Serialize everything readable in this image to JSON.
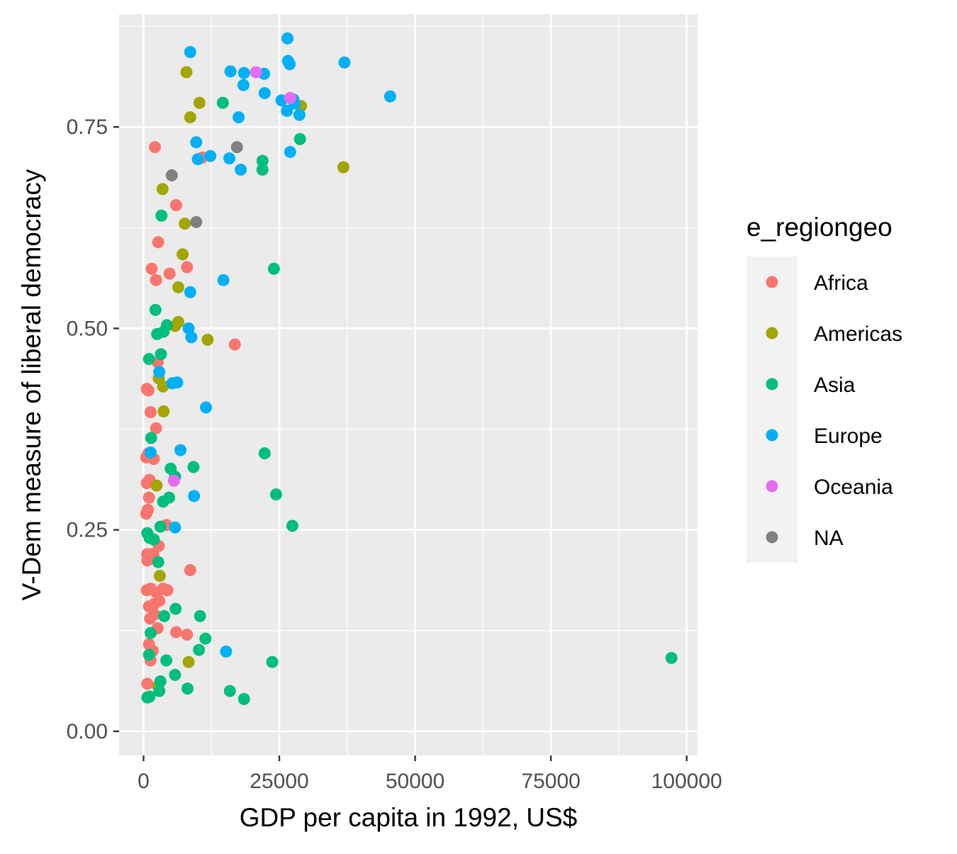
{
  "chart_data": {
    "type": "scatter",
    "xlabel": "GDP per capita in 1992, US$",
    "ylabel": "V-Dem measure of liberal democracy",
    "xlim": [
      -4500,
      102000
    ],
    "ylim": [
      -0.03,
      0.89
    ],
    "x_ticks": [
      0,
      25000,
      50000,
      75000,
      100000
    ],
    "x_tick_labels": [
      "0",
      "25000",
      "50000",
      "75000",
      "100000"
    ],
    "y_ticks": [
      0,
      0.25,
      0.5,
      0.75
    ],
    "y_tick_labels": [
      "0.00",
      "0.25",
      "0.50",
      "0.75"
    ],
    "grid": true,
    "legend": {
      "title": "e_regiongeo",
      "position": "right"
    },
    "series": [
      {
        "name": "Africa",
        "color": "#F8766D",
        "points": [
          [
            2100,
            0.725
          ],
          [
            10800,
            0.712
          ],
          [
            6000,
            0.653
          ],
          [
            2700,
            0.607
          ],
          [
            1500,
            0.574
          ],
          [
            4800,
            0.568
          ],
          [
            2300,
            0.56
          ],
          [
            8000,
            0.576
          ],
          [
            16800,
            0.48
          ],
          [
            2600,
            0.458
          ],
          [
            600,
            0.425
          ],
          [
            900,
            0.423
          ],
          [
            1300,
            0.396
          ],
          [
            2300,
            0.376
          ],
          [
            700,
            0.342
          ],
          [
            900,
            0.345
          ],
          [
            1900,
            0.338
          ],
          [
            500,
            0.34
          ],
          [
            600,
            0.308
          ],
          [
            1100,
            0.312
          ],
          [
            1000,
            0.29
          ],
          [
            800,
            0.275
          ],
          [
            500,
            0.27
          ],
          [
            4200,
            0.256
          ],
          [
            2800,
            0.23
          ],
          [
            700,
            0.22
          ],
          [
            1800,
            0.22
          ],
          [
            700,
            0.212
          ],
          [
            8600,
            0.2
          ],
          [
            600,
            0.175
          ],
          [
            1300,
            0.177
          ],
          [
            2400,
            0.172
          ],
          [
            3600,
            0.177
          ],
          [
            4400,
            0.175
          ],
          [
            1000,
            0.155
          ],
          [
            2000,
            0.158
          ],
          [
            2900,
            0.162
          ],
          [
            1200,
            0.14
          ],
          [
            2000,
            0.145
          ],
          [
            2600,
            0.128
          ],
          [
            6000,
            0.123
          ],
          [
            8000,
            0.12
          ],
          [
            1000,
            0.108
          ],
          [
            1700,
            0.1
          ],
          [
            1300,
            0.088
          ],
          [
            700,
            0.059
          ]
        ]
      },
      {
        "name": "Americas",
        "color": "#A3A500",
        "points": [
          [
            7900,
            0.818
          ],
          [
            10300,
            0.78
          ],
          [
            8600,
            0.762
          ],
          [
            29000,
            0.776
          ],
          [
            36800,
            0.7
          ],
          [
            3500,
            0.673
          ],
          [
            7600,
            0.63
          ],
          [
            7200,
            0.592
          ],
          [
            6400,
            0.551
          ],
          [
            6400,
            0.508
          ],
          [
            5800,
            0.503
          ],
          [
            11800,
            0.486
          ],
          [
            2800,
            0.438
          ],
          [
            3600,
            0.428
          ],
          [
            3700,
            0.397
          ],
          [
            2400,
            0.305
          ],
          [
            3000,
            0.193
          ],
          [
            8300,
            0.086
          ],
          [
            2700,
            0.056
          ]
        ]
      },
      {
        "name": "Asia",
        "color": "#00BF7D",
        "points": [
          [
            14600,
            0.78
          ],
          [
            28800,
            0.735
          ],
          [
            21900,
            0.708
          ],
          [
            21900,
            0.697
          ],
          [
            3300,
            0.64
          ],
          [
            24000,
            0.574
          ],
          [
            2200,
            0.523
          ],
          [
            4300,
            0.504
          ],
          [
            2500,
            0.493
          ],
          [
            3700,
            0.496
          ],
          [
            3200,
            0.468
          ],
          [
            1000,
            0.462
          ],
          [
            1400,
            0.364
          ],
          [
            22300,
            0.345
          ],
          [
            9200,
            0.328
          ],
          [
            5000,
            0.326
          ],
          [
            5800,
            0.316
          ],
          [
            24400,
            0.294
          ],
          [
            4700,
            0.29
          ],
          [
            3600,
            0.285
          ],
          [
            27400,
            0.255
          ],
          [
            3100,
            0.254
          ],
          [
            700,
            0.246
          ],
          [
            1100,
            0.24
          ],
          [
            1900,
            0.238
          ],
          [
            2700,
            0.21
          ],
          [
            5900,
            0.152
          ],
          [
            10400,
            0.143
          ],
          [
            3800,
            0.143
          ],
          [
            11400,
            0.115
          ],
          [
            1300,
            0.122
          ],
          [
            10200,
            0.101
          ],
          [
            1000,
            0.095
          ],
          [
            23700,
            0.086
          ],
          [
            4200,
            0.088
          ],
          [
            97200,
            0.091
          ],
          [
            5800,
            0.07
          ],
          [
            3100,
            0.062
          ],
          [
            8100,
            0.053
          ],
          [
            15900,
            0.05
          ],
          [
            2900,
            0.05
          ],
          [
            18500,
            0.04
          ],
          [
            700,
            0.042
          ],
          [
            1100,
            0.043
          ]
        ]
      },
      {
        "name": "Europe",
        "color": "#00B0F6",
        "points": [
          [
            26500,
            0.86
          ],
          [
            8600,
            0.843
          ],
          [
            26600,
            0.832
          ],
          [
            37000,
            0.83
          ],
          [
            26900,
            0.828
          ],
          [
            16000,
            0.819
          ],
          [
            18500,
            0.817
          ],
          [
            22200,
            0.816
          ],
          [
            18400,
            0.802
          ],
          [
            45400,
            0.788
          ],
          [
            22300,
            0.792
          ],
          [
            25400,
            0.783
          ],
          [
            27600,
            0.784
          ],
          [
            26400,
            0.77
          ],
          [
            27800,
            0.779
          ],
          [
            28700,
            0.765
          ],
          [
            17500,
            0.762
          ],
          [
            9700,
            0.731
          ],
          [
            12300,
            0.714
          ],
          [
            15800,
            0.711
          ],
          [
            10000,
            0.71
          ],
          [
            27000,
            0.719
          ],
          [
            17900,
            0.697
          ],
          [
            14700,
            0.56
          ],
          [
            8600,
            0.545
          ],
          [
            8300,
            0.5
          ],
          [
            8800,
            0.489
          ],
          [
            2900,
            0.446
          ],
          [
            6200,
            0.433
          ],
          [
            5300,
            0.432
          ],
          [
            11500,
            0.402
          ],
          [
            6800,
            0.349
          ],
          [
            1300,
            0.346
          ],
          [
            9300,
            0.292
          ],
          [
            5800,
            0.253
          ],
          [
            15200,
            0.099
          ]
        ]
      },
      {
        "name": "Oceania",
        "color": "#E76BF3",
        "points": [
          [
            20700,
            0.818
          ],
          [
            27000,
            0.786
          ],
          [
            5600,
            0.311
          ]
        ]
      },
      {
        "name": "NA",
        "color": "#808080",
        "points": [
          [
            17200,
            0.725
          ],
          [
            5200,
            0.69
          ],
          [
            9700,
            0.632
          ]
        ]
      }
    ]
  }
}
